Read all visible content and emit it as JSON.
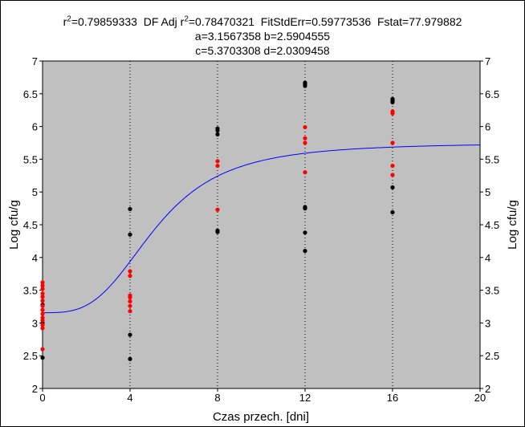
{
  "header": {
    "r2_symbol": "r",
    "r2_sup": "2",
    "r2_value": "=0.79859333",
    "adj_prefix": "  DF Adj r",
    "adj_sup": "2",
    "adj_value": "=0.78470321  FitStdErr=0.59773536  Fstat=77.979882",
    "line2": "a=3.1567358 b=2.5904555",
    "line3": "c=5.3703308 d=2.0309458"
  },
  "colors": {
    "plot_background": "#c0c0c0",
    "fit_curve": "#0000ff",
    "series_black": "#000000",
    "series_red": "#ff0000"
  },
  "chart_data": {
    "type": "scatter",
    "title": "",
    "xlabel": "Czas przech. [dni]",
    "ylabel": "Log cfu/g",
    "ylabel_right": "Log cfu/g",
    "xlim": [
      0,
      20
    ],
    "ylim": [
      2,
      7
    ],
    "x_ticks": [
      "0",
      "4",
      "8",
      "12",
      "16",
      "20"
    ],
    "y_ticks": [
      "2",
      "2.5",
      "3",
      "3.5",
      "4",
      "4.5",
      "5",
      "5.5",
      "6",
      "6.5",
      "7"
    ],
    "grid": "dotted vertical at x ticks",
    "legend": "none",
    "fit": {
      "a": 3.1567358,
      "b": 2.5904555,
      "c": 5.3703308,
      "d": 2.0309458,
      "x_range": [
        0,
        20
      ]
    },
    "series": [
      {
        "color": "#000000",
        "points": [
          [
            0,
            2.47
          ],
          [
            0,
            3.0
          ],
          [
            0,
            3.28
          ],
          [
            4,
            2.45
          ],
          [
            4,
            2.82
          ],
          [
            4,
            4.35
          ],
          [
            4,
            4.74
          ],
          [
            8,
            4.39
          ],
          [
            8,
            4.41
          ],
          [
            8,
            5.88
          ],
          [
            8,
            5.94
          ],
          [
            8,
            5.97
          ],
          [
            12,
            4.1
          ],
          [
            12,
            4.38
          ],
          [
            12,
            4.75
          ],
          [
            12,
            4.77
          ],
          [
            12,
            6.62
          ],
          [
            12,
            6.65
          ],
          [
            12,
            6.67
          ],
          [
            16,
            4.69
          ],
          [
            16,
            5.07
          ],
          [
            16,
            6.37
          ],
          [
            16,
            6.39
          ],
          [
            16,
            6.4
          ],
          [
            16,
            6.42
          ]
        ]
      },
      {
        "color": "#ff0000",
        "points": [
          [
            0,
            2.6
          ],
          [
            0,
            2.92
          ],
          [
            0,
            2.97
          ],
          [
            0,
            3.04
          ],
          [
            0,
            3.08
          ],
          [
            0,
            3.14
          ],
          [
            0,
            3.2
          ],
          [
            0,
            3.26
          ],
          [
            0,
            3.34
          ],
          [
            0,
            3.4
          ],
          [
            0,
            3.45
          ],
          [
            0,
            3.52
          ],
          [
            0,
            3.57
          ],
          [
            0,
            3.62
          ],
          [
            4,
            3.18
          ],
          [
            4,
            3.26
          ],
          [
            4,
            3.33
          ],
          [
            4,
            3.39
          ],
          [
            4,
            3.42
          ],
          [
            4,
            3.72
          ],
          [
            4,
            3.79
          ],
          [
            8,
            4.73
          ],
          [
            8,
            5.4
          ],
          [
            8,
            5.47
          ],
          [
            12,
            5.3
          ],
          [
            12,
            5.75
          ],
          [
            12,
            5.82
          ],
          [
            12,
            5.99
          ],
          [
            16,
            5.26
          ],
          [
            16,
            5.4
          ],
          [
            16,
            5.75
          ],
          [
            16,
            6.2
          ],
          [
            16,
            6.23
          ]
        ]
      }
    ]
  }
}
